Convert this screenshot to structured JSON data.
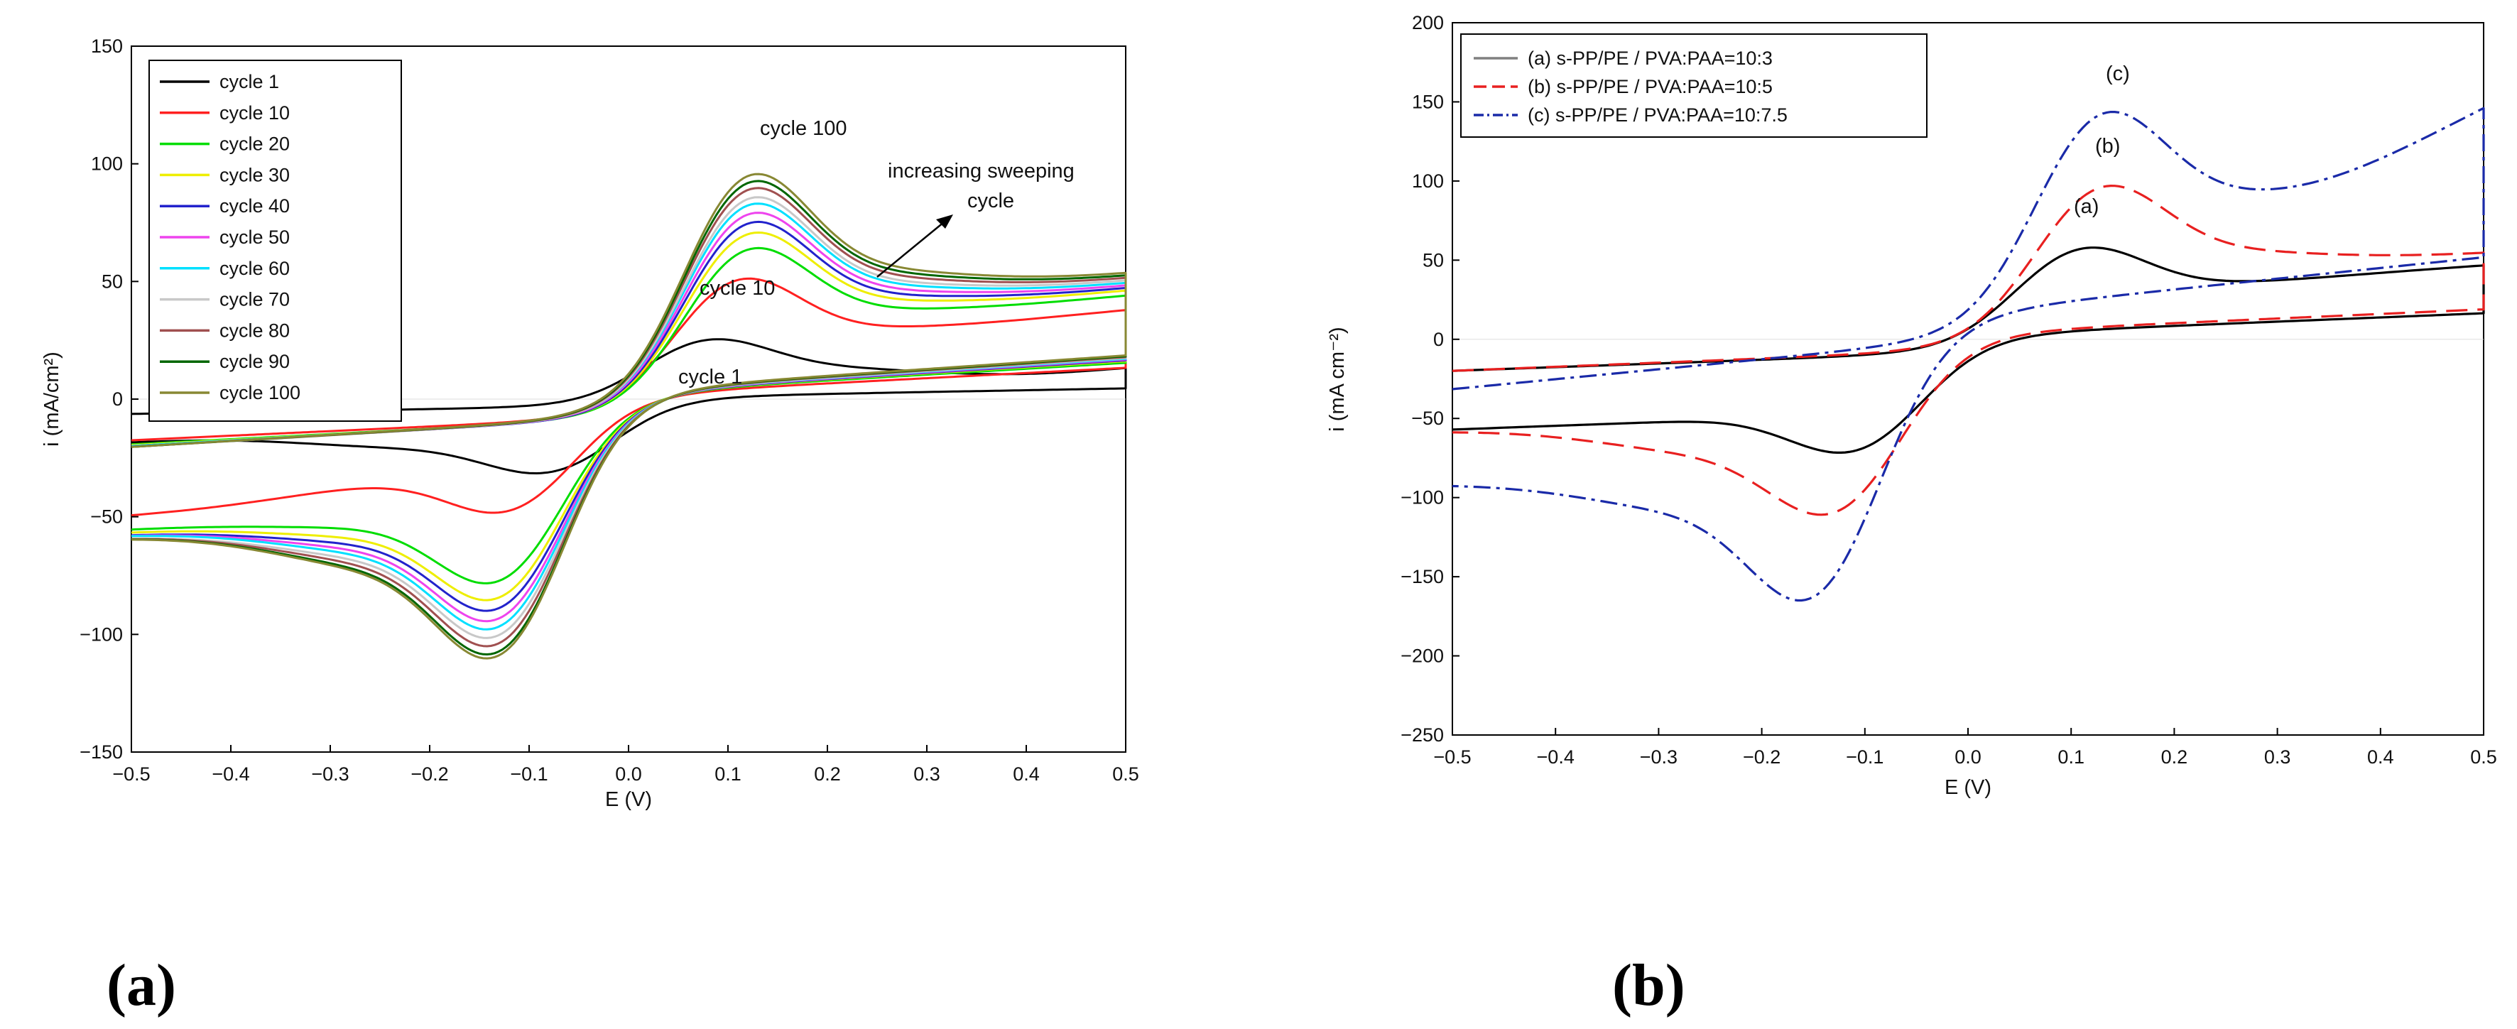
{
  "chart_data": [
    {
      "type": "line",
      "panel_label": "(a)",
      "xlabel": "E (V)",
      "ylabel": "i (mA/cm²)",
      "xlim": [
        -0.5,
        0.5
      ],
      "ylim": [
        -150,
        150
      ],
      "xticks": [
        "−0.5",
        "−0.4",
        "−0.3",
        "−0.2",
        "−0.1",
        "0.0",
        "0.1",
        "0.2",
        "0.3",
        "0.4",
        "0.5"
      ],
      "yticks": [
        "−150",
        "−100",
        "−50",
        "0",
        "50",
        "100",
        "150"
      ],
      "legend_position": "top-left",
      "annotations": [
        "cycle 100",
        "cycle 10",
        "cycle 1",
        "increasing sweeping",
        "cycle"
      ],
      "series": [
        {
          "name": "cycle 1",
          "color": "#000000",
          "ipa": 30,
          "ipc": -34,
          "epa": 0.08,
          "epc": -0.08,
          "right": 13,
          "left": -18
        },
        {
          "name": "cycle 10",
          "color": "#ff2020",
          "ipa": 61,
          "ipc": -51,
          "epa": 0.11,
          "epc": -0.12,
          "right": 38,
          "left": -50
        },
        {
          "name": "cycle 20",
          "color": "#00dd00",
          "ipa": 75,
          "ipc": -84,
          "epa": 0.12,
          "epc": -0.13,
          "right": 44,
          "left": -55
        },
        {
          "name": "cycle 30",
          "color": "#eeee00",
          "ipa": 82,
          "ipc": -92,
          "epa": 0.12,
          "epc": -0.13,
          "right": 46,
          "left": -56
        },
        {
          "name": "cycle 40",
          "color": "#2222cc",
          "ipa": 87,
          "ipc": -97,
          "epa": 0.12,
          "epc": -0.13,
          "right": 47,
          "left": -57
        },
        {
          "name": "cycle 50",
          "color": "#ee44ee",
          "ipa": 91,
          "ipc": -102,
          "epa": 0.12,
          "epc": -0.13,
          "right": 48,
          "left": -57
        },
        {
          "name": "cycle 60",
          "color": "#00e0ff",
          "ipa": 95,
          "ipc": -106,
          "epa": 0.12,
          "epc": -0.13,
          "right": 49,
          "left": -57
        },
        {
          "name": "cycle 70",
          "color": "#c8c8c8",
          "ipa": 98,
          "ipc": -110,
          "epa": 0.12,
          "epc": -0.13,
          "right": 50,
          "left": -58
        },
        {
          "name": "cycle 80",
          "color": "#a05050",
          "ipa": 102,
          "ipc": -114,
          "epa": 0.12,
          "epc": -0.13,
          "right": 51,
          "left": -58
        },
        {
          "name": "cycle 90",
          "color": "#006600",
          "ipa": 105,
          "ipc": -118,
          "epa": 0.12,
          "epc": -0.13,
          "right": 52,
          "left": -58
        },
        {
          "name": "cycle 100",
          "color": "#888833",
          "ipa": 108,
          "ipc": -120,
          "epa": 0.12,
          "epc": -0.13,
          "right": 53,
          "left": -58
        }
      ]
    },
    {
      "type": "line",
      "panel_label": "(b)",
      "xlabel": "E (V)",
      "ylabel": "i (mA cm⁻²)",
      "xlim": [
        -0.5,
        0.5
      ],
      "ylim": [
        -250,
        200
      ],
      "xticks": [
        "−0.5",
        "−0.4",
        "−0.3",
        "−0.2",
        "−0.1",
        "0.0",
        "0.1",
        "0.2",
        "0.3",
        "0.4",
        "0.5"
      ],
      "yticks": [
        "−250",
        "−200",
        "−150",
        "−100",
        "−50",
        "0",
        "50",
        "100",
        "150",
        "200"
      ],
      "legend_position": "top-left",
      "annotations": [
        "(a)",
        "(b)",
        "(c)"
      ],
      "series": [
        {
          "name": "(a) s-PP/PE / PVA:PAA=10:3",
          "color": "#000000",
          "legend_color": "#808080",
          "dash": "",
          "ipa": 68,
          "ipc": -77,
          "epa": 0.11,
          "epc": -0.11,
          "right": 47,
          "left": -57,
          "trough": 0
        },
        {
          "name": "(b) s-PP/PE / PVA:PAA=10:5",
          "color": "#e82020",
          "legend_color": "#e82020",
          "dash": "30,14",
          "ipa": 109,
          "ipc": -121,
          "epa": 0.13,
          "epc": -0.13,
          "right": 54,
          "left": -57,
          "trough": 0
        },
        {
          "name": "(c) s-PP/PE / PVA:PAA=10:7.5",
          "color": "#1a2aa8",
          "legend_color": "#1a2aa8",
          "dash": "24,8,5,8",
          "ipa": 148,
          "ipc": -188,
          "epa": 0.13,
          "epc": -0.15,
          "right": 148,
          "left": -90,
          "trough": 85
        }
      ]
    }
  ]
}
